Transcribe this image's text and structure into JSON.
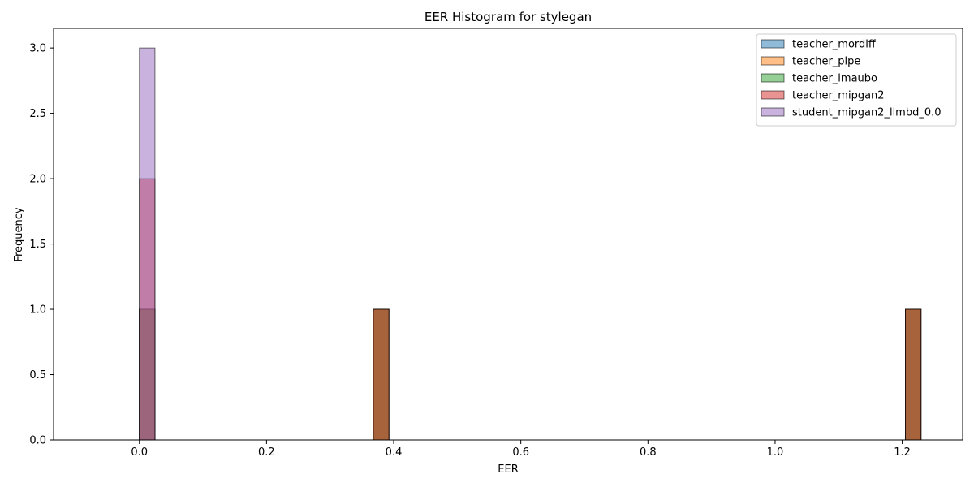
{
  "chart_data": {
    "type": "bar",
    "title": "EER Histogram for stylegan",
    "xlabel": "EER",
    "ylabel": "Frequency",
    "xlim": [
      -0.135,
      1.295
    ],
    "ylim": [
      0,
      3.15
    ],
    "xticks": [
      0.0,
      0.2,
      0.4,
      0.6,
      0.8,
      1.0,
      1.2
    ],
    "xtick_labels": [
      "0.0",
      "0.2",
      "0.4",
      "0.6",
      "0.8",
      "1.0",
      "1.2"
    ],
    "yticks": [
      0.0,
      0.5,
      1.0,
      1.5,
      2.0,
      2.5,
      3.0
    ],
    "ytick_labels": [
      "0.0",
      "0.5",
      "1.0",
      "1.5",
      "2.0",
      "2.5",
      "3.0"
    ],
    "bin_width": 0.0245,
    "grid": false,
    "legend_position": "top-right",
    "series": [
      {
        "name": "teacher_mordiff",
        "color": "#1f77b4",
        "bins": [
          {
            "x": 0.0,
            "count": 1
          },
          {
            "x": 0.368,
            "count": 1
          },
          {
            "x": 1.205,
            "count": 1
          }
        ]
      },
      {
        "name": "teacher_pipe",
        "color": "#ff7f0e",
        "bins": [
          {
            "x": 0.0,
            "count": 1
          },
          {
            "x": 0.368,
            "count": 1
          },
          {
            "x": 1.205,
            "count": 1
          }
        ]
      },
      {
        "name": "teacher_lmaubo",
        "color": "#2ca02c",
        "bins": [
          {
            "x": 0.0,
            "count": 1
          },
          {
            "x": 0.368,
            "count": 1
          },
          {
            "x": 1.205,
            "count": 1
          }
        ]
      },
      {
        "name": "teacher_mipgan2",
        "color": "#d62728",
        "bins": [
          {
            "x": 0.0,
            "count": 2
          },
          {
            "x": 0.368,
            "count": 1
          },
          {
            "x": 1.205,
            "count": 1
          }
        ]
      },
      {
        "name": "student_mipgan2_llmbd_0.0",
        "color": "#9467bd",
        "bins": [
          {
            "x": 0.0,
            "count": 3
          }
        ]
      }
    ]
  }
}
